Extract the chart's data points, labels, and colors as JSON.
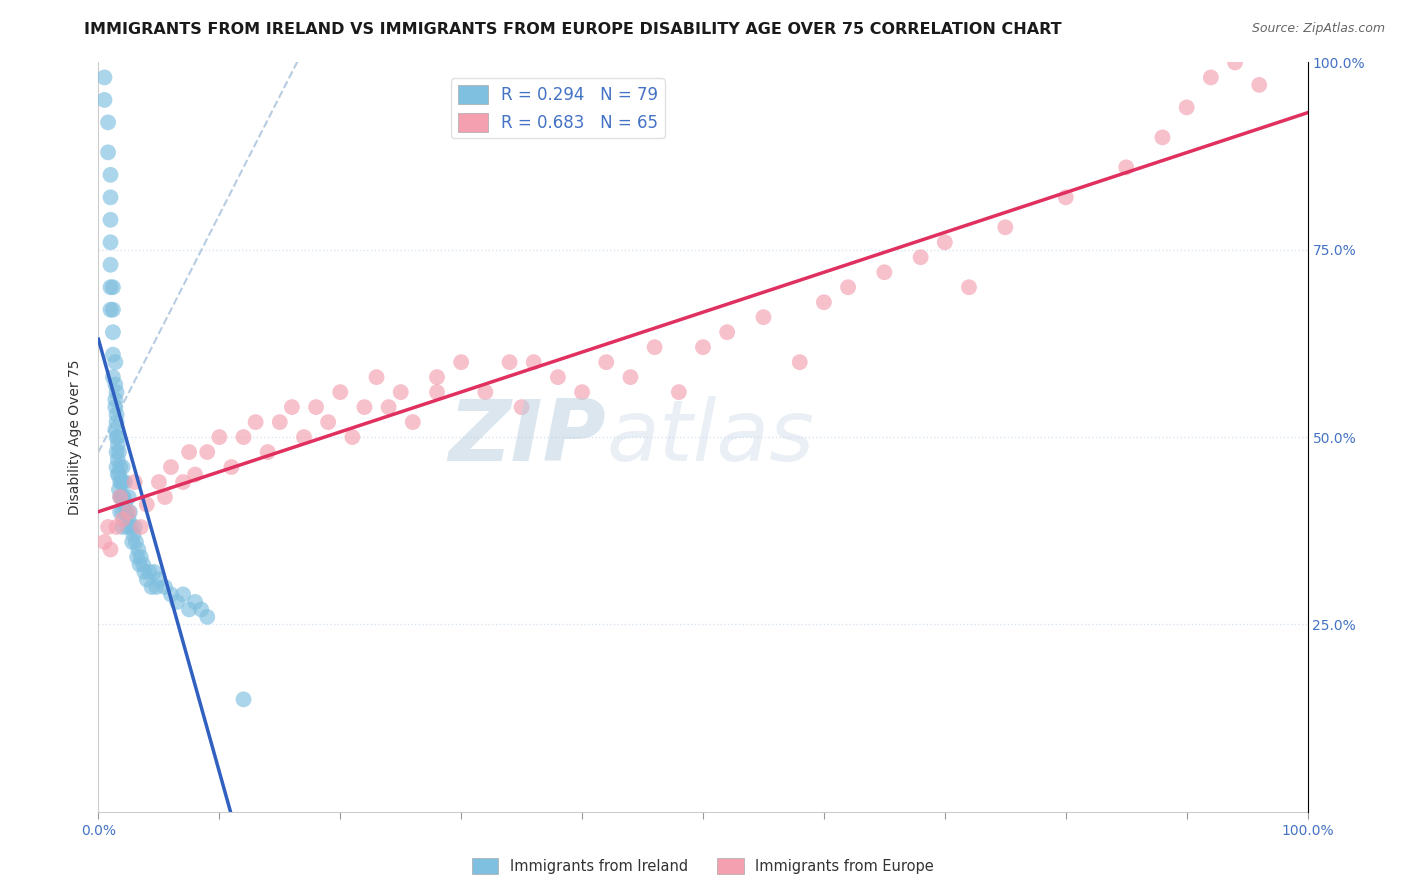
{
  "title": "IMMIGRANTS FROM IRELAND VS IMMIGRANTS FROM EUROPE DISABILITY AGE OVER 75 CORRELATION CHART",
  "source": "Source: ZipAtlas.com",
  "ylabel": "Disability Age Over 75",
  "legend_blue": "R = 0.294   N = 79",
  "legend_pink": "R = 0.683   N = 65",
  "color_blue": "#7fbfdf",
  "color_pink": "#f4a0b0",
  "color_line_blue": "#3060c0",
  "color_line_pink": "#e03060",
  "color_dashed": "#aac4dd",
  "watermark_zip": "ZIP",
  "watermark_atlas": "atlas",
  "background": "#ffffff",
  "grid_color": "#d8e4f0",
  "title_fontsize": 11.5,
  "axis_label_fontsize": 10,
  "tick_fontsize": 10,
  "legend_fontsize": 12,
  "source_fontsize": 9,
  "xlim": [
    0.0,
    1.0
  ],
  "ylim": [
    0.0,
    1.0
  ],
  "ireland_x": [
    0.005,
    0.005,
    0.008,
    0.008,
    0.01,
    0.01,
    0.01,
    0.01,
    0.01,
    0.01,
    0.01,
    0.012,
    0.012,
    0.012,
    0.012,
    0.012,
    0.014,
    0.014,
    0.014,
    0.014,
    0.014,
    0.015,
    0.015,
    0.015,
    0.015,
    0.015,
    0.015,
    0.016,
    0.016,
    0.016,
    0.016,
    0.017,
    0.017,
    0.017,
    0.018,
    0.018,
    0.018,
    0.018,
    0.019,
    0.019,
    0.02,
    0.02,
    0.02,
    0.02,
    0.02,
    0.021,
    0.022,
    0.022,
    0.023,
    0.024,
    0.025,
    0.025,
    0.026,
    0.027,
    0.028,
    0.029,
    0.03,
    0.031,
    0.032,
    0.033,
    0.034,
    0.035,
    0.037,
    0.038,
    0.04,
    0.042,
    0.044,
    0.046,
    0.048,
    0.05,
    0.055,
    0.06,
    0.065,
    0.07,
    0.075,
    0.08,
    0.085,
    0.09,
    0.12
  ],
  "ireland_y": [
    0.98,
    0.95,
    0.92,
    0.88,
    0.85,
    0.82,
    0.79,
    0.76,
    0.73,
    0.7,
    0.67,
    0.7,
    0.67,
    0.64,
    0.61,
    0.58,
    0.6,
    0.57,
    0.54,
    0.51,
    0.55,
    0.56,
    0.53,
    0.5,
    0.48,
    0.46,
    0.52,
    0.49,
    0.47,
    0.45,
    0.5,
    0.48,
    0.45,
    0.43,
    0.46,
    0.44,
    0.42,
    0.4,
    0.44,
    0.42,
    0.44,
    0.42,
    0.4,
    0.38,
    0.46,
    0.42,
    0.44,
    0.41,
    0.4,
    0.38,
    0.42,
    0.39,
    0.4,
    0.38,
    0.36,
    0.37,
    0.38,
    0.36,
    0.34,
    0.35,
    0.33,
    0.34,
    0.33,
    0.32,
    0.31,
    0.32,
    0.3,
    0.32,
    0.3,
    0.31,
    0.3,
    0.29,
    0.28,
    0.29,
    0.27,
    0.28,
    0.27,
    0.26,
    0.15
  ],
  "europe_x": [
    0.005,
    0.008,
    0.01,
    0.015,
    0.018,
    0.02,
    0.025,
    0.03,
    0.035,
    0.04,
    0.05,
    0.055,
    0.06,
    0.07,
    0.075,
    0.08,
    0.09,
    0.1,
    0.11,
    0.12,
    0.13,
    0.14,
    0.15,
    0.16,
    0.17,
    0.18,
    0.19,
    0.2,
    0.21,
    0.22,
    0.23,
    0.24,
    0.25,
    0.26,
    0.28,
    0.28,
    0.3,
    0.32,
    0.34,
    0.35,
    0.36,
    0.38,
    0.4,
    0.42,
    0.44,
    0.46,
    0.48,
    0.5,
    0.52,
    0.55,
    0.58,
    0.6,
    0.62,
    0.65,
    0.68,
    0.7,
    0.72,
    0.75,
    0.8,
    0.85,
    0.88,
    0.9,
    0.92,
    0.94,
    0.96
  ],
  "europe_y": [
    0.36,
    0.38,
    0.35,
    0.38,
    0.42,
    0.39,
    0.4,
    0.44,
    0.38,
    0.41,
    0.44,
    0.42,
    0.46,
    0.44,
    0.48,
    0.45,
    0.48,
    0.5,
    0.46,
    0.5,
    0.52,
    0.48,
    0.52,
    0.54,
    0.5,
    0.54,
    0.52,
    0.56,
    0.5,
    0.54,
    0.58,
    0.54,
    0.56,
    0.52,
    0.56,
    0.58,
    0.6,
    0.56,
    0.6,
    0.54,
    0.6,
    0.58,
    0.56,
    0.6,
    0.58,
    0.62,
    0.56,
    0.62,
    0.64,
    0.66,
    0.6,
    0.68,
    0.7,
    0.72,
    0.74,
    0.76,
    0.7,
    0.78,
    0.82,
    0.86,
    0.9,
    0.94,
    0.98,
    1.0,
    0.97
  ]
}
